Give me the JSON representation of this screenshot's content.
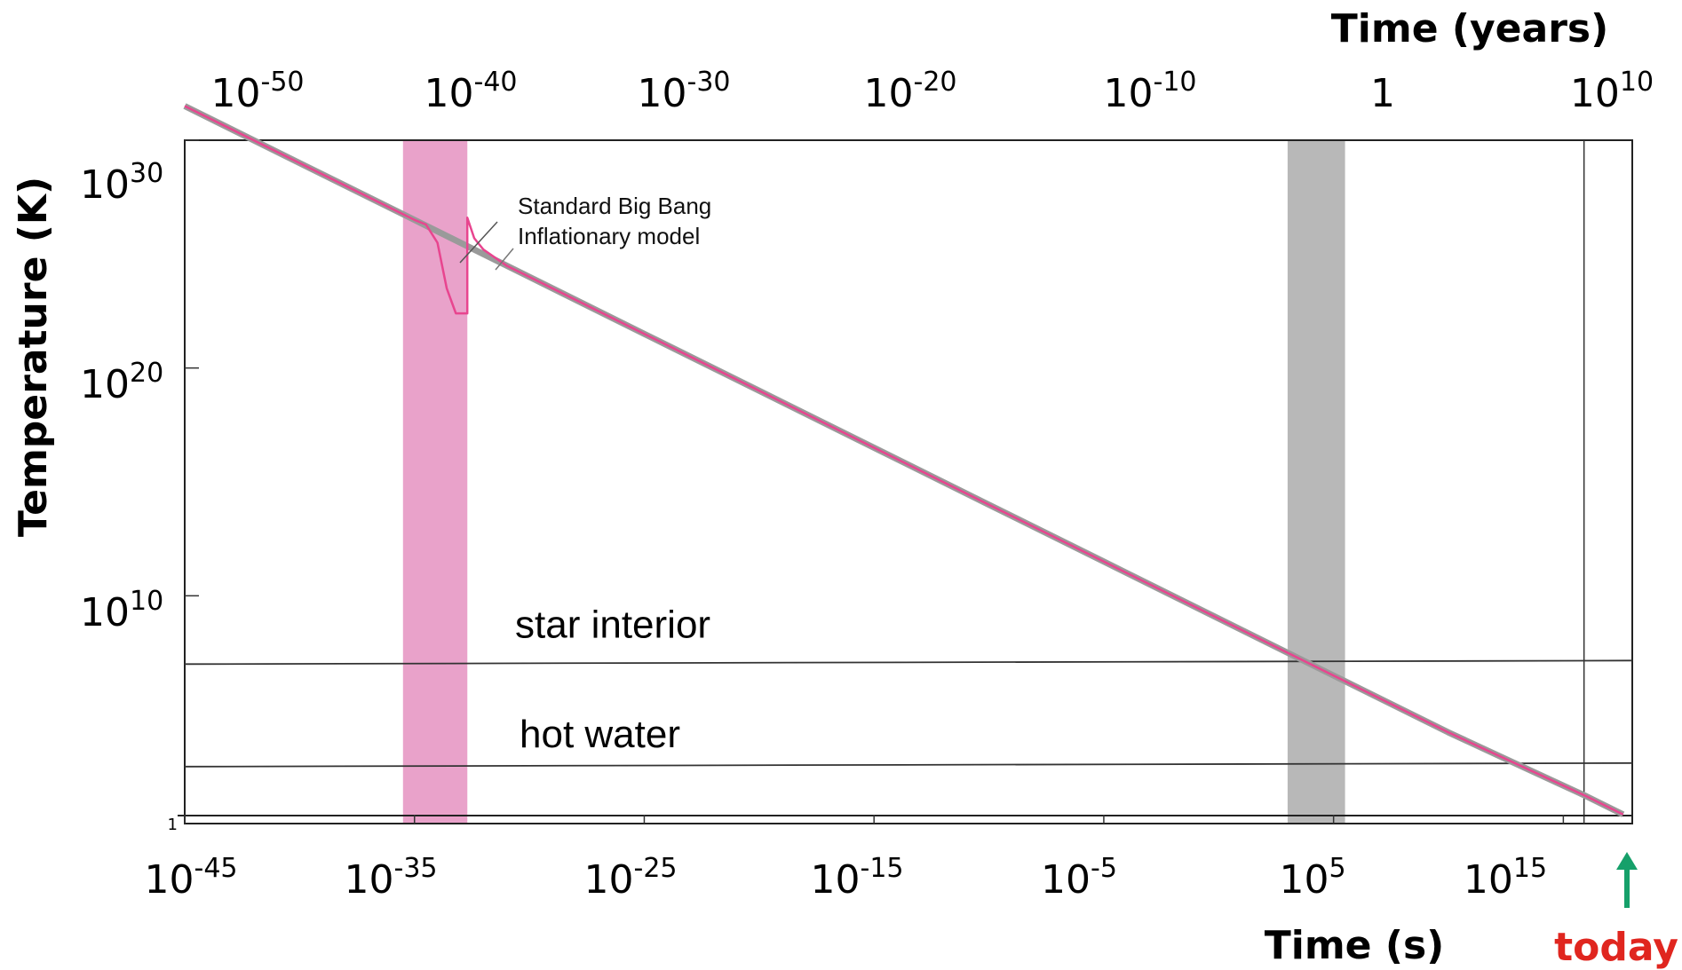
{
  "chart_data": {
    "type": "line",
    "title": "",
    "xlabel": "Time (s)",
    "x2label": "Time (years)",
    "ylabel": "Temperature (K)",
    "x_scale": "log",
    "y_scale": "log",
    "xlim": [
      1e-45,
      1e+18
    ],
    "ylim": [
      1,
      1e+30
    ],
    "x_ticks": [
      {
        "base": "10",
        "exp": "-45"
      },
      {
        "base": "10",
        "exp": "-35"
      },
      {
        "base": "10",
        "exp": "-25"
      },
      {
        "base": "10",
        "exp": "-15"
      },
      {
        "base": "10",
        "exp": "-5"
      },
      {
        "base": "10",
        "exp": "5"
      },
      {
        "base": "10",
        "exp": "15"
      }
    ],
    "x2_ticks": [
      {
        "base": "10",
        "exp": "-50"
      },
      {
        "base": "10",
        "exp": "-40"
      },
      {
        "base": "10",
        "exp": "-30"
      },
      {
        "base": "10",
        "exp": "-20"
      },
      {
        "base": "10",
        "exp": "-10"
      },
      {
        "base": "1",
        "exp": ""
      },
      {
        "base": "10",
        "exp": "10"
      }
    ],
    "y_ticks": [
      {
        "base": "10",
        "exp": "30"
      },
      {
        "base": "10",
        "exp": "20"
      },
      {
        "base": "10",
        "exp": "10"
      },
      {
        "base": "1",
        "exp": ""
      }
    ],
    "series": [
      {
        "name": "Standard Big Bang",
        "color": "#9a9a9a",
        "x_log10": [
          -45,
          -40,
          -35,
          -30,
          -25,
          -20,
          -15,
          -10,
          -5,
          0,
          5,
          10,
          13,
          16,
          17.6
        ],
        "y_log10": [
          31.5,
          29,
          26.5,
          24,
          21.5,
          19,
          16.5,
          14,
          11.5,
          9,
          6.5,
          4,
          2.6,
          1.2,
          0.4
        ]
      },
      {
        "name": "Inflationary model",
        "color": "#e8458f",
        "x_log10": [
          -45,
          -40,
          -35,
          -34.5,
          -34,
          -33.6,
          -33.2,
          -32.7,
          -32.7,
          -32.7,
          -32.4,
          -32,
          -31,
          -30,
          -25,
          -20,
          -15,
          -10,
          -5,
          0,
          5,
          10,
          13,
          16,
          17.6
        ],
        "y_log10": [
          31.5,
          29,
          26.5,
          26.3,
          25.5,
          23.5,
          22.4,
          22.4,
          26.2,
          26.6,
          25.7,
          25.2,
          24.5,
          24,
          21.5,
          19,
          16.5,
          14,
          11.5,
          9,
          6.5,
          4,
          2.6,
          1.2,
          0.4
        ]
      }
    ],
    "reference_lines": [
      {
        "label": "star interior",
        "y_log10": 7
      },
      {
        "label": "hot water",
        "y_log10": 2.5
      }
    ],
    "shaded_bands": [
      {
        "color": "#e07ab4",
        "x_log10": [
          -35.5,
          -32.7
        ]
      },
      {
        "color": "#9a9a9a",
        "x_log10": [
          3,
          5.5
        ]
      }
    ],
    "annotations": {
      "legend_line1": "Standard Big Bang",
      "legend_line2": "Inflationary model",
      "today_label": "today",
      "today_color": "#e0261f",
      "arrow_color": "#16a06a"
    },
    "grid": false
  }
}
